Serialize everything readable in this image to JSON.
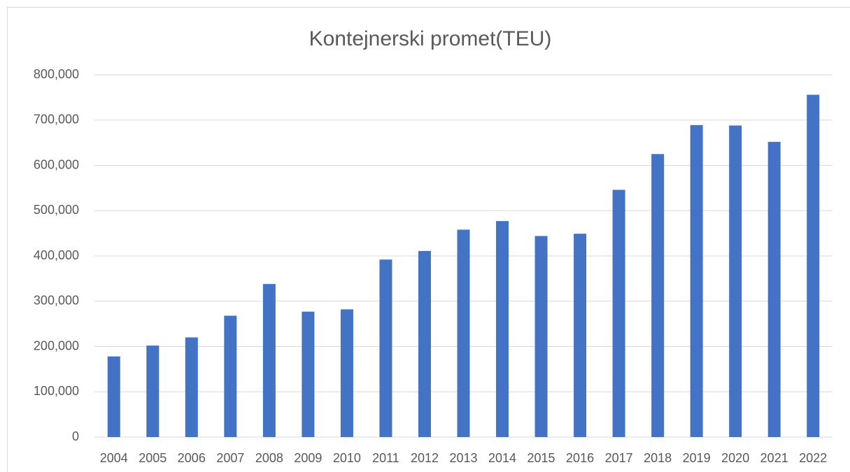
{
  "chart_data": {
    "type": "bar",
    "title": "Kontejnerski promet(TEU)",
    "categories": [
      "2004",
      "2005",
      "2006",
      "2007",
      "2008",
      "2009",
      "2010",
      "2011",
      "2012",
      "2013",
      "2014",
      "2015",
      "2016",
      "2017",
      "2018",
      "2019",
      "2020",
      "2021",
      "2022"
    ],
    "values": [
      178000,
      202000,
      220000,
      268000,
      338000,
      277000,
      282000,
      392000,
      411000,
      458000,
      477000,
      444000,
      449000,
      546000,
      625000,
      689000,
      688000,
      652000,
      756000
    ],
    "color": "#4472c4",
    "ylim": [
      0,
      800000
    ],
    "yticks": [
      0,
      {
        "value": 100000,
        "label": "100,000"
      },
      {
        "value": 200000,
        "label": "200,000"
      },
      {
        "value": 300000,
        "label": "300,000"
      },
      {
        "value": 400000,
        "label": "400,000"
      },
      {
        "value": 500000,
        "label": "500,000"
      },
      {
        "value": 600000,
        "label": "600,000"
      },
      {
        "value": 700000,
        "label": "700,000"
      },
      {
        "value": 800000,
        "label": "800,000"
      }
    ],
    "grid": true
  }
}
